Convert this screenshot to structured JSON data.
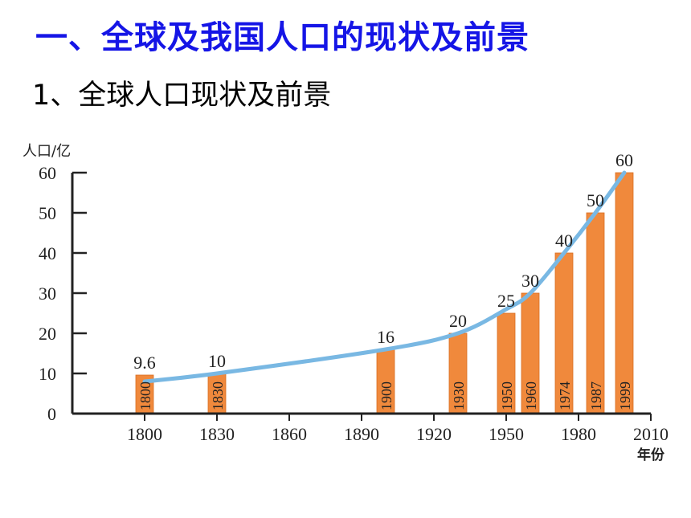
{
  "header": {
    "title": "一、全球及我国人口的现状及前景",
    "subtitle": "1、全球人口现状及前景"
  },
  "colors": {
    "title": "#1515e6",
    "bar": "#f0893c",
    "bar_edge": "#d96f22",
    "curve": "#79b8e3",
    "axis": "#222222"
  },
  "chart_data": {
    "type": "bar",
    "ylabel": "人口/亿",
    "xlabel": "年份",
    "ylim": [
      0,
      60
    ],
    "yticks": [
      0,
      10,
      20,
      30,
      40,
      50,
      60
    ],
    "xlim": [
      1770,
      2010
    ],
    "xticks": [
      1800,
      1830,
      1860,
      1890,
      1920,
      1950,
      1980,
      2010
    ],
    "grid": false,
    "bars": [
      {
        "year": 1800,
        "value": 9.6,
        "value_label": "9.6",
        "year_label": "1800"
      },
      {
        "year": 1830,
        "value": 10,
        "value_label": "10",
        "year_label": "1830"
      },
      {
        "year": 1900,
        "value": 16,
        "value_label": "16",
        "year_label": "1900"
      },
      {
        "year": 1930,
        "value": 20,
        "value_label": "20",
        "year_label": "1930"
      },
      {
        "year": 1950,
        "value": 25,
        "value_label": "25",
        "year_label": "1950"
      },
      {
        "year": 1960,
        "value": 30,
        "value_label": "30",
        "year_label": "1960"
      },
      {
        "year": 1974,
        "value": 40,
        "value_label": "40",
        "year_label": "1974"
      },
      {
        "year": 1987,
        "value": 50,
        "value_label": "50",
        "year_label": "1987"
      },
      {
        "year": 1999,
        "value": 60,
        "value_label": "60",
        "year_label": "1999"
      }
    ],
    "trend_curve": {
      "x": [
        1800,
        1830,
        1900,
        1930,
        1950,
        1960,
        1974,
        1987,
        1999
      ],
      "y": [
        8,
        10,
        16,
        20,
        26,
        30,
        40,
        50,
        60
      ]
    }
  }
}
